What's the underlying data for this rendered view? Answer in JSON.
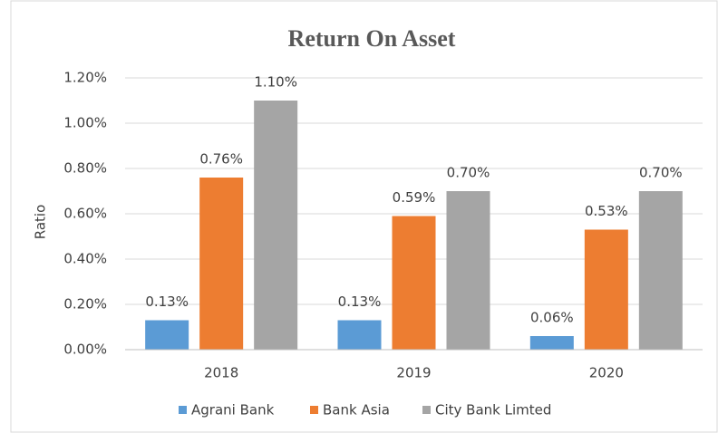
{
  "chart_data": {
    "type": "bar",
    "title": "Return On Asset",
    "y_label": "Ratio",
    "categories": [
      "2018",
      "2019",
      "2020"
    ],
    "series": [
      {
        "name": "Agrani Bank",
        "color": "#5b9bd5",
        "values": [
          0.13,
          0.13,
          0.06
        ],
        "value_labels": [
          "0.13%",
          "0.13%",
          "0.06%"
        ]
      },
      {
        "name": "Bank Asia",
        "color": "#ed7d31",
        "values": [
          0.76,
          0.59,
          0.53
        ],
        "value_labels": [
          "0.76%",
          "0.59%",
          "0.53%"
        ]
      },
      {
        "name": "City Bank Limted",
        "color": "#a5a5a5",
        "values": [
          1.1,
          0.7,
          0.7
        ],
        "value_labels": [
          "1.10%",
          "0.70%",
          "0.70%"
        ]
      }
    ],
    "ylim": [
      0,
      1.2
    ],
    "yticks": [
      {
        "value": 0,
        "label": "0.00%"
      },
      {
        "value": 0.2,
        "label": "0.20%"
      },
      {
        "value": 0.4,
        "label": "0.40%"
      },
      {
        "value": 0.6,
        "label": "0.60%"
      },
      {
        "value": 0.8,
        "label": "0.80%"
      },
      {
        "value": 1.0,
        "label": "1.00%"
      },
      {
        "value": 1.2,
        "label": "1.20%"
      }
    ],
    "grid": true,
    "legend": "bottom"
  }
}
